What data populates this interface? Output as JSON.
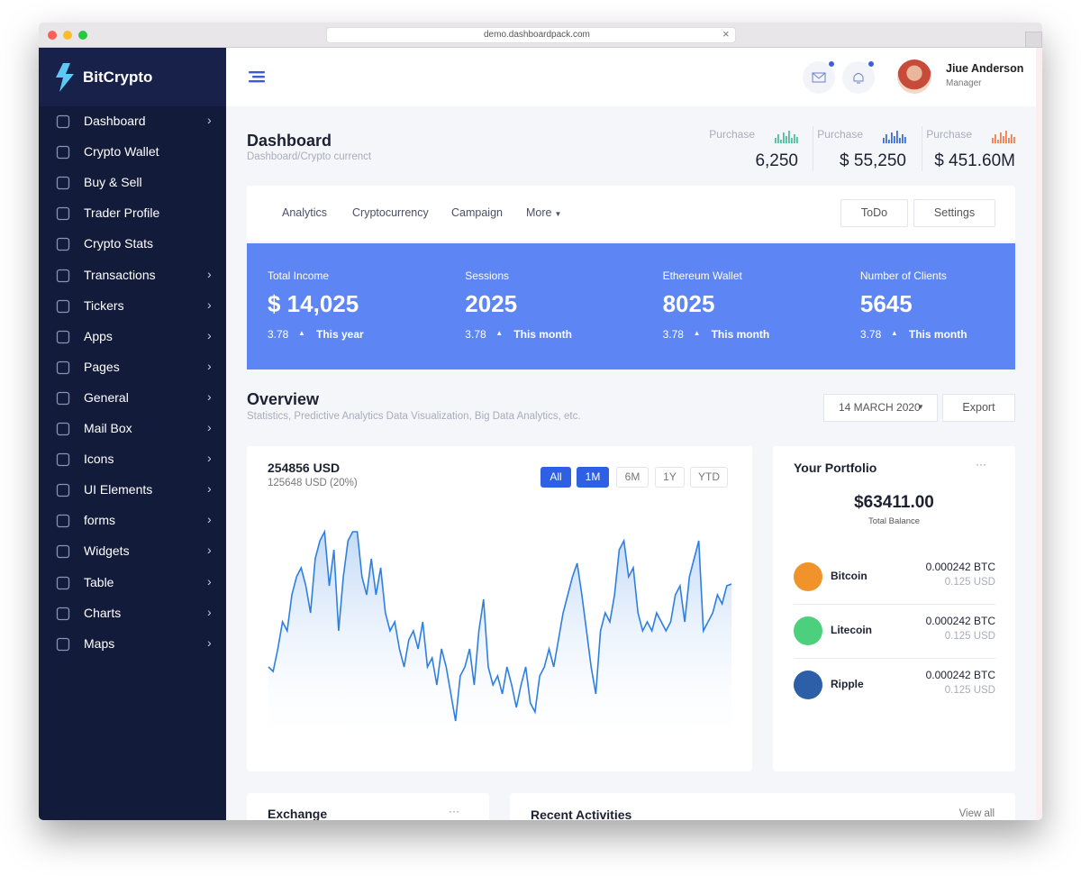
{
  "browser": {
    "url": "demo.dashboardpack.com"
  },
  "sidebar": {
    "brand": "BitCrypto",
    "menu": [
      {
        "label": "Dashboard",
        "arrow": true
      },
      {
        "label": "Crypto Wallet",
        "arrow": false
      },
      {
        "label": "Buy & Sell",
        "arrow": false
      },
      {
        "label": "Trader Profile",
        "arrow": false
      },
      {
        "label": "Crypto Stats",
        "arrow": false
      },
      {
        "label": "Transactions",
        "arrow": true
      },
      {
        "label": "Tickers",
        "arrow": true
      },
      {
        "label": "Apps",
        "arrow": true
      },
      {
        "label": "Pages",
        "arrow": true
      },
      {
        "label": "General",
        "arrow": true
      },
      {
        "label": "Mail Box",
        "arrow": true
      },
      {
        "label": "Icons",
        "arrow": true
      },
      {
        "label": "UI Elements",
        "arrow": true
      },
      {
        "label": "forms",
        "arrow": true
      },
      {
        "label": "Widgets",
        "arrow": true
      },
      {
        "label": "Table",
        "arrow": true
      },
      {
        "label": "Charts",
        "arrow": true
      },
      {
        "label": "Maps",
        "arrow": true
      }
    ]
  },
  "header": {
    "user": {
      "name": "Jiue Anderson",
      "role": "Manager"
    }
  },
  "page": {
    "title": "Dashboard",
    "breadcrumb": "Dashboard/Crypto currenct"
  },
  "purchases": [
    {
      "label": "Purchase",
      "value": "6,250",
      "color": "#4cbf9b"
    },
    {
      "label": "Purchase",
      "value": "$ 55,250",
      "color": "#3b6fd6"
    },
    {
      "label": "Purchase",
      "value": "$ 451.60M",
      "color": "#f07f4f"
    }
  ],
  "tabs": [
    "Analytics",
    "Cryptocurrency",
    "Campaign",
    "More"
  ],
  "buttons": [
    "ToDo",
    "Settings"
  ],
  "stats": [
    {
      "label": "Total Income",
      "value": "$ 14,025",
      "change": "3.78",
      "period": "This year"
    },
    {
      "label": "Sessions",
      "value": "2025",
      "change": "3.78",
      "period": "This month"
    },
    {
      "label": "Ethereum Wallet",
      "value": "8025",
      "change": "3.78",
      "period": "This month"
    },
    {
      "label": "Number of Clients",
      "value": "5645",
      "change": "3.78",
      "period": "This month"
    }
  ],
  "overview": {
    "title": "Overview",
    "subtitle": "Statistics, Predictive Analytics Data Visualization, Big Data Analytics, etc.",
    "date": "14 MARCH 2020",
    "export": "Export"
  },
  "chart": {
    "amount": "254856 USD",
    "sub": "125648 USD (20%)",
    "ranges": [
      "All",
      "1M",
      "6M",
      "1Y",
      "YTD"
    ],
    "active": [
      0,
      1
    ],
    "ylim": [
      0,
      240
    ],
    "values": [
      75,
      70,
      95,
      125,
      115,
      155,
      175,
      185,
      165,
      135,
      195,
      215,
      225,
      165,
      205,
      115,
      175,
      215,
      225,
      225,
      175,
      155,
      195,
      155,
      185,
      135,
      115,
      125,
      95,
      75,
      105,
      115,
      95,
      125,
      75,
      85,
      55,
      95,
      75,
      45,
      15,
      65,
      75,
      95,
      55,
      115,
      150,
      75,
      55,
      65,
      45,
      75,
      55,
      30,
      55,
      75,
      35,
      25,
      65,
      75,
      95,
      75,
      105,
      135,
      155,
      175,
      190,
      155,
      115,
      75,
      45,
      115,
      135,
      125,
      155,
      205,
      215,
      175,
      185,
      135,
      115,
      125,
      115,
      135,
      125,
      115,
      125,
      155,
      165,
      125,
      175,
      195,
      215,
      115,
      125,
      135,
      155,
      145,
      165,
      167
    ]
  },
  "portfolio": {
    "title": "Your Portfolio",
    "balance": "$63411.00",
    "balance_label": "Total Balance",
    "coins": [
      {
        "name": "Bitcoin",
        "amount": "0.000242 BTC",
        "usd": "0.125 USD",
        "color": "#f0932b"
      },
      {
        "name": "Litecoin",
        "amount": "0.000242 BTC",
        "usd": "0.125 USD",
        "color": "#4cd07d"
      },
      {
        "name": "Ripple",
        "amount": "0.000242 BTC",
        "usd": "0.125 USD",
        "color": "#2d5ea8"
      }
    ]
  },
  "exchange": {
    "title": "Exchange"
  },
  "recent": {
    "title": "Recent Activities",
    "link": "View all"
  }
}
